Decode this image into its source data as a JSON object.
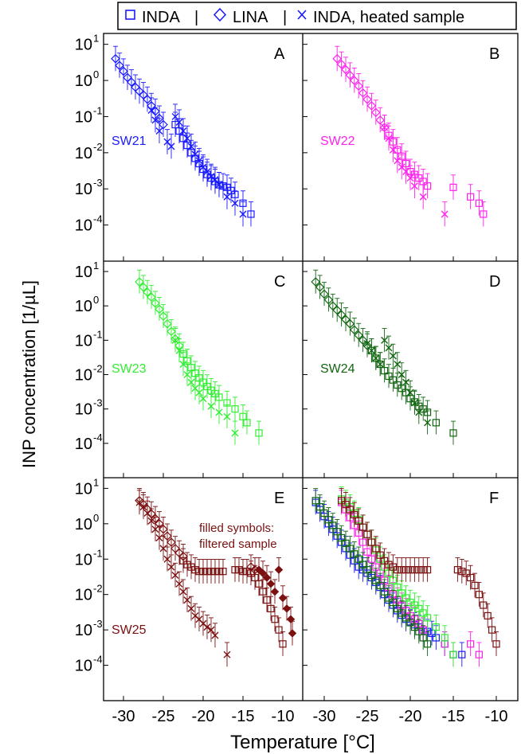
{
  "legend": {
    "items": [
      {
        "label": "INDA",
        "marker": "square"
      },
      {
        "label": "LINA",
        "marker": "diamond"
      },
      {
        "label": "INDA, heated sample",
        "marker": "cross"
      }
    ],
    "separator": "|",
    "marker_color": "#1a1aff"
  },
  "axes": {
    "ylabel": "INP concentration [1/µL]",
    "xlabel": "Temperature [°C]",
    "x_ticks": [
      -30,
      -25,
      -20,
      -15,
      -10
    ],
    "y_tick_exponents": [
      1,
      0,
      -1,
      -2,
      -3,
      -4
    ],
    "y_tick_base": "10"
  },
  "chart_data": [
    {
      "type": "scatter",
      "panel": "A",
      "sample": "SW21",
      "color": "#1a1aff",
      "xlim": [
        -32.5,
        -7.5
      ],
      "ylim": [
        1e-05,
        20
      ],
      "yscale": "log",
      "series": [
        {
          "name": "LINA",
          "marker": "diamond",
          "x": [
            -31.0,
            -30.5,
            -30.0,
            -29.5,
            -29.0,
            -28.5,
            -28.0,
            -27.5,
            -27.0,
            -26.5,
            -26.0,
            -25.5,
            -25.0
          ],
          "y": [
            4.0,
            2.6,
            1.8,
            1.2,
            0.9,
            0.65,
            0.5,
            0.4,
            0.3,
            0.2,
            0.14,
            0.09,
            0.06
          ]
        },
        {
          "name": "INDA",
          "marker": "square",
          "x": [
            -23.5,
            -23.0,
            -22.5,
            -22.0,
            -21.5,
            -21.0,
            -20.5,
            -20.0,
            -19.5,
            -19.0,
            -18.5,
            -18.0,
            -17.5,
            -17.0,
            -16.5,
            -16.0,
            -15.0,
            -14.0
          ],
          "y": [
            0.06,
            0.04,
            0.025,
            0.016,
            0.01,
            0.007,
            0.005,
            0.0035,
            0.0025,
            0.002,
            0.0016,
            0.0013,
            0.0012,
            0.0011,
            0.0009,
            0.0007,
            0.0004,
            0.0002
          ]
        },
        {
          "name": "INDA, heated sample",
          "marker": "cross",
          "x": [
            -26.5,
            -26.0,
            -25.5,
            -24.5,
            -24.0,
            -23.5,
            -23.0,
            -22.5,
            -22.0,
            -21.5,
            -21.0,
            -20.5,
            -20.0,
            -19.5,
            -19.0,
            -18.5,
            -18.0,
            -17.0,
            -16.0,
            -15.0
          ],
          "y": [
            0.15,
            0.08,
            0.04,
            0.02,
            0.015,
            0.1,
            0.07,
            0.04,
            0.025,
            0.015,
            0.009,
            0.006,
            0.004,
            0.003,
            0.0022,
            0.0018,
            0.0013,
            0.0006,
            0.0004,
            0.0002
          ]
        }
      ]
    },
    {
      "type": "scatter",
      "panel": "B",
      "sample": "SW22",
      "color": "#ff22ee",
      "xlim": [
        -32.5,
        -7.5
      ],
      "ylim": [
        1e-05,
        20
      ],
      "yscale": "log",
      "series": [
        {
          "name": "LINA",
          "marker": "diamond",
          "x": [
            -28.5,
            -28.0,
            -27.5,
            -27.0,
            -26.5,
            -26.0,
            -25.5,
            -25.0,
            -24.5,
            -24.0,
            -23.5,
            -23.0
          ],
          "y": [
            4.0,
            2.8,
            2.0,
            1.4,
            1.0,
            0.7,
            0.45,
            0.3,
            0.2,
            0.13,
            0.08,
            0.05
          ]
        },
        {
          "name": "INDA",
          "marker": "square",
          "x": [
            -22.5,
            -22.0,
            -21.5,
            -21.0,
            -20.5,
            -20.0,
            -19.5,
            -19.0,
            -18.5,
            -18.0,
            -15.0,
            -13.0,
            -12.0,
            -11.5
          ],
          "y": [
            0.03,
            0.02,
            0.012,
            0.008,
            0.005,
            0.003,
            0.0025,
            0.002,
            0.0016,
            0.0012,
            0.0011,
            0.0006,
            0.0004,
            0.0002
          ]
        },
        {
          "name": "INDA, heated sample",
          "marker": "cross",
          "x": [
            -23.0,
            -22.5,
            -22.0,
            -21.5,
            -21.0,
            -20.5,
            -20.0,
            -19.5,
            -18.5,
            -16.0
          ],
          "y": [
            0.05,
            0.025,
            0.012,
            0.006,
            0.004,
            0.003,
            0.002,
            0.0012,
            0.0006,
            0.0002
          ]
        }
      ]
    },
    {
      "type": "scatter",
      "panel": "C",
      "sample": "SW23",
      "color": "#33ee33",
      "xlim": [
        -32.5,
        -7.5
      ],
      "ylim": [
        1e-05,
        20
      ],
      "yscale": "log",
      "series": [
        {
          "name": "LINA",
          "marker": "diamond",
          "x": [
            -28.0,
            -27.5,
            -27.0,
            -26.5,
            -26.0,
            -25.5,
            -25.0,
            -24.5,
            -24.0,
            -23.5,
            -23.0
          ],
          "y": [
            5.0,
            3.5,
            2.5,
            1.8,
            1.2,
            0.8,
            0.5,
            0.3,
            0.18,
            0.11,
            0.07
          ]
        },
        {
          "name": "INDA",
          "marker": "square",
          "x": [
            -22.5,
            -22.0,
            -21.5,
            -21.0,
            -20.5,
            -20.0,
            -19.5,
            -19.0,
            -18.5,
            -18.0,
            -17.0,
            -16.0,
            -15.0,
            -14.5,
            -13.0
          ],
          "y": [
            0.04,
            0.025,
            0.016,
            0.011,
            0.008,
            0.006,
            0.0045,
            0.0035,
            0.0028,
            0.0022,
            0.0015,
            0.001,
            0.0006,
            0.0004,
            0.0002
          ]
        },
        {
          "name": "INDA, heated sample",
          "marker": "cross",
          "x": [
            -23.5,
            -23.0,
            -22.5,
            -22.0,
            -21.5,
            -21.0,
            -20.5,
            -20.0,
            -19.0,
            -18.0,
            -17.0,
            -16.0
          ],
          "y": [
            0.1,
            0.05,
            0.02,
            0.01,
            0.006,
            0.004,
            0.003,
            0.002,
            0.0012,
            0.0008,
            0.0006,
            0.0002
          ]
        }
      ]
    },
    {
      "type": "scatter",
      "panel": "D",
      "sample": "SW24",
      "color": "#116611",
      "xlim": [
        -32.5,
        -7.5
      ],
      "ylim": [
        1e-05,
        20
      ],
      "yscale": "log",
      "series": [
        {
          "name": "LINA",
          "marker": "diamond",
          "x": [
            -31.0,
            -30.5,
            -30.0,
            -29.5,
            -29.0,
            -28.5,
            -28.0,
            -27.5,
            -27.0,
            -26.5,
            -26.0,
            -25.5,
            -25.0
          ],
          "y": [
            5.0,
            3.5,
            2.2,
            1.5,
            1.0,
            0.75,
            0.55,
            0.4,
            0.3,
            0.2,
            0.14,
            0.1,
            0.07
          ]
        },
        {
          "name": "INDA",
          "marker": "square",
          "x": [
            -24.5,
            -24.0,
            -23.5,
            -23.0,
            -22.5,
            -22.0,
            -21.5,
            -21.0,
            -20.5,
            -20.0,
            -19.5,
            -19.0,
            -18.5,
            -18.0,
            -17.0,
            -15.0
          ],
          "y": [
            0.05,
            0.03,
            0.02,
            0.013,
            0.009,
            0.007,
            0.005,
            0.004,
            0.003,
            0.002,
            0.0016,
            0.0012,
            0.001,
            0.0008,
            0.0004,
            0.0002
          ]
        },
        {
          "name": "INDA, heated sample",
          "marker": "cross",
          "x": [
            -25.0,
            -24.5,
            -24.0,
            -23.5,
            -23.0,
            -22.5,
            -22.0,
            -21.5,
            -21.0,
            -20.5,
            -20.0,
            -19.5,
            -19.0,
            -18.0
          ],
          "y": [
            0.08,
            0.05,
            0.03,
            0.02,
            0.1,
            0.06,
            0.035,
            0.02,
            0.01,
            0.006,
            0.003,
            0.0015,
            0.0008,
            0.0004
          ]
        }
      ]
    },
    {
      "type": "scatter",
      "panel": "E",
      "sample": "SW25",
      "color": "#7a1010",
      "annotation": [
        "filled symbols:",
        "filtered sample"
      ],
      "xlim": [
        -32.5,
        -7.5
      ],
      "ylim": [
        1e-05,
        20
      ],
      "yscale": "log",
      "series": [
        {
          "name": "LINA",
          "marker": "diamond",
          "x": [
            -28.0,
            -27.5,
            -27.0,
            -26.5,
            -26.0,
            -25.5,
            -25.0,
            -24.5,
            -24.0,
            -23.5,
            -23.0,
            -22.5,
            -14.0,
            -13.5
          ],
          "y": [
            4.5,
            3.5,
            2.6,
            1.9,
            1.4,
            1.0,
            0.7,
            0.45,
            0.3,
            0.2,
            0.15,
            0.12,
            0.06,
            0.05
          ]
        },
        {
          "name": "INDA",
          "marker": "square",
          "x": [
            -22.5,
            -22.0,
            -21.5,
            -21.0,
            -20.5,
            -20.0,
            -19.5,
            -19.0,
            -18.5,
            -18.0,
            -17.5,
            -16.0,
            -15.5,
            -15.0,
            -14.5,
            -14.0,
            -13.5,
            -13.0,
            -12.5,
            -12.0,
            -11.5,
            -11.0,
            -10.5,
            -10.0
          ],
          "y": [
            0.09,
            0.07,
            0.06,
            0.05,
            0.045,
            0.045,
            0.045,
            0.045,
            0.045,
            0.045,
            0.045,
            0.05,
            0.05,
            0.045,
            0.045,
            0.04,
            0.03,
            0.02,
            0.012,
            0.007,
            0.004,
            0.002,
            0.001,
            0.0004
          ]
        },
        {
          "name": "INDA, heated sample",
          "marker": "cross",
          "x": [
            -28.0,
            -27.5,
            -27.0,
            -26.5,
            -26.0,
            -25.5,
            -25.0,
            -24.5,
            -24.0,
            -23.5,
            -23.0,
            -22.5,
            -22.0,
            -21.5,
            -21.0,
            -20.5,
            -20.0,
            -19.5,
            -19.0,
            -18.5,
            -17.0
          ],
          "y": [
            4.0,
            3.0,
            2.0,
            1.2,
            0.7,
            0.4,
            0.2,
            0.1,
            0.06,
            0.035,
            0.02,
            0.012,
            0.007,
            0.004,
            0.0025,
            0.002,
            0.0015,
            0.0012,
            0.001,
            0.0007,
            0.0002
          ]
        },
        {
          "name": "filtered sample",
          "marker": "filled",
          "x": [
            -13.0,
            -12.5,
            -12.0,
            -11.5,
            -11.0,
            -10.5,
            -10.0,
            -9.5,
            -9.0,
            -8.8
          ],
          "y": [
            0.05,
            0.04,
            0.03,
            0.02,
            0.012,
            0.05,
            0.008,
            0.004,
            0.002,
            0.0008
          ]
        }
      ]
    },
    {
      "type": "scatter",
      "panel": "F",
      "sample": "",
      "color": "#000000",
      "xlim": [
        -32.5,
        -7.5
      ],
      "ylim": [
        1e-05,
        20
      ],
      "yscale": "log",
      "series": [
        {
          "name": "SW21",
          "marker": "square",
          "color": "#1a1aff",
          "x": [
            -31.0,
            -30.5,
            -30.0,
            -29.5,
            -29.0,
            -28.5,
            -28.0,
            -27.5,
            -27.0,
            -26.5,
            -26.0,
            -25.5,
            -25.0,
            -24.5,
            -24.0,
            -23.5,
            -23.0,
            -22.5,
            -22.0,
            -21.5,
            -21.0,
            -20.5,
            -20.0,
            -19.5,
            -19.0,
            -18.5,
            -18.0,
            -17.5,
            -17.0,
            -16.0,
            -15.0,
            -14.0
          ],
          "y": [
            4.0,
            2.5,
            1.6,
            1.0,
            0.7,
            0.45,
            0.3,
            0.2,
            0.13,
            0.09,
            0.06,
            0.05,
            0.04,
            0.03,
            0.022,
            0.016,
            0.01,
            0.007,
            0.005,
            0.0035,
            0.0026,
            0.002,
            0.0017,
            0.0014,
            0.0012,
            0.001,
            0.0009,
            0.0008,
            0.0006,
            0.0004,
            0.0002,
            0.0002
          ]
        },
        {
          "name": "SW22",
          "marker": "square",
          "color": "#ff22ee",
          "x": [
            -28.0,
            -27.5,
            -27.0,
            -26.5,
            -26.0,
            -25.5,
            -25.0,
            -24.5,
            -24.0,
            -23.5,
            -23.0,
            -22.5,
            -22.0,
            -21.5,
            -21.0,
            -20.5,
            -20.0,
            -19.5,
            -19.0,
            -18.5,
            -16.0,
            -15.0,
            -13.0,
            -12.0
          ],
          "y": [
            4.0,
            2.5,
            1.5,
            0.9,
            0.55,
            0.3,
            0.16,
            0.1,
            0.06,
            0.04,
            0.025,
            0.016,
            0.01,
            0.007,
            0.005,
            0.0035,
            0.0025,
            0.002,
            0.0015,
            0.001,
            0.0004,
            0.0002,
            0.0004,
            0.0002
          ]
        },
        {
          "name": "SW23",
          "marker": "square",
          "color": "#33ee33",
          "x": [
            -28.0,
            -27.5,
            -27.0,
            -26.5,
            -26.0,
            -25.5,
            -25.0,
            -24.5,
            -24.0,
            -23.5,
            -23.0,
            -22.5,
            -22.0,
            -21.5,
            -21.0,
            -20.5,
            -20.0,
            -19.5,
            -19.0,
            -18.5,
            -18.0,
            -17.0,
            -16.0,
            -15.0
          ],
          "y": [
            5.0,
            4.0,
            3.0,
            2.0,
            1.3,
            0.8,
            0.5,
            0.3,
            0.18,
            0.1,
            0.06,
            0.04,
            0.025,
            0.016,
            0.011,
            0.008,
            0.006,
            0.005,
            0.004,
            0.003,
            0.0022,
            0.0012,
            0.0006,
            0.0002
          ]
        },
        {
          "name": "SW24",
          "marker": "square",
          "color": "#116611",
          "x": [
            -31.0,
            -30.5,
            -30.0,
            -29.5,
            -29.0,
            -28.5,
            -28.0,
            -27.5,
            -27.0,
            -26.5,
            -26.0,
            -25.5,
            -25.0,
            -24.5,
            -24.0,
            -23.5,
            -23.0,
            -22.5,
            -22.0,
            -21.5,
            -21.0,
            -20.5,
            -20.0,
            -19.5,
            -19.0,
            -18.5,
            -18.0
          ],
          "y": [
            4.5,
            3.0,
            2.0,
            1.3,
            0.9,
            0.6,
            0.4,
            0.28,
            0.2,
            0.14,
            0.1,
            0.07,
            0.05,
            0.035,
            0.025,
            0.018,
            0.012,
            0.008,
            0.006,
            0.004,
            0.003,
            0.0022,
            0.0016,
            0.0012,
            0.0009,
            0.0006,
            0.0004
          ]
        },
        {
          "name": "SW25",
          "marker": "square",
          "color": "#7a1010",
          "x": [
            -28.0,
            -27.5,
            -27.0,
            -26.5,
            -26.0,
            -25.5,
            -25.0,
            -24.5,
            -24.0,
            -23.5,
            -23.0,
            -22.5,
            -22.0,
            -21.5,
            -21.0,
            -20.5,
            -20.0,
            -19.5,
            -19.0,
            -18.5,
            -18.0,
            -14.5,
            -14.0,
            -13.5,
            -13.0,
            -12.5,
            -12.0,
            -11.5,
            -11.0,
            -10.5,
            -10.0
          ],
          "y": [
            4.5,
            3.5,
            2.5,
            1.8,
            1.2,
            0.8,
            0.5,
            0.3,
            0.2,
            0.13,
            0.09,
            0.07,
            0.06,
            0.05,
            0.05,
            0.05,
            0.05,
            0.05,
            0.05,
            0.05,
            0.05,
            0.05,
            0.045,
            0.04,
            0.03,
            0.018,
            0.01,
            0.005,
            0.0025,
            0.001,
            0.0004
          ]
        }
      ]
    }
  ]
}
